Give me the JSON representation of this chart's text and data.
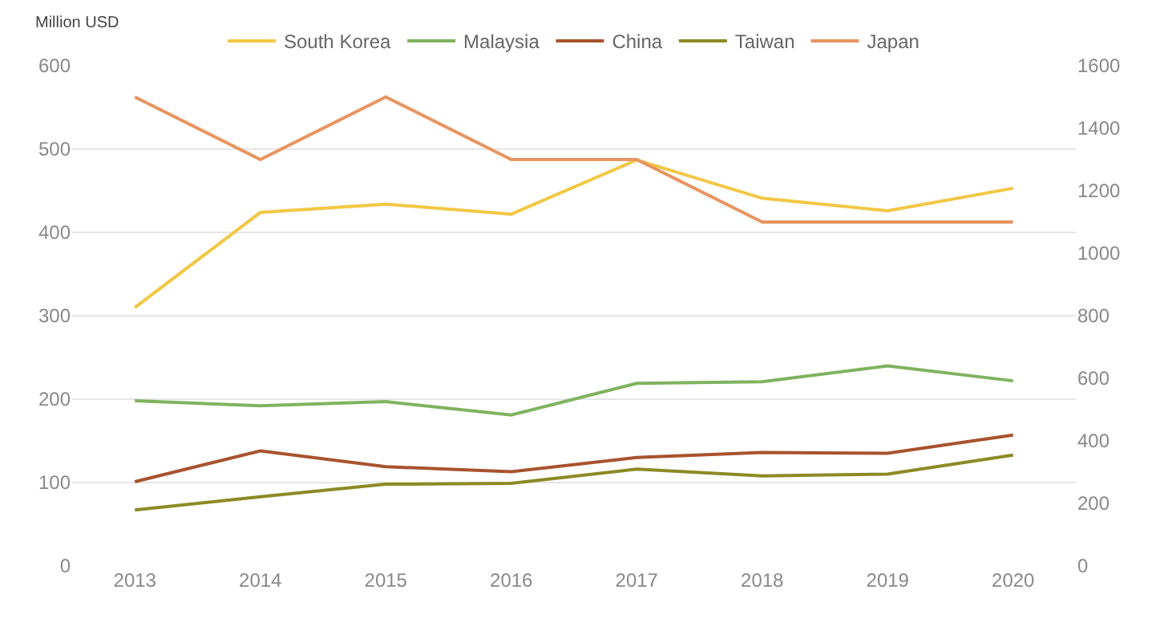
{
  "chart_data": {
    "type": "line",
    "ylabel": "Million USD",
    "categories": [
      "2013",
      "2014",
      "2015",
      "2016",
      "2017",
      "2018",
      "2019",
      "2020"
    ],
    "series": [
      {
        "name": "South Korea",
        "color": "#f2c744",
        "values": [
          310,
          424,
          434,
          422,
          487,
          441,
          426,
          453
        ]
      },
      {
        "name": "Malaysia",
        "color": "#7fb35f",
        "values": [
          198,
          192,
          197,
          181,
          219,
          221,
          240,
          222
        ]
      },
      {
        "name": "China",
        "color": "#a8532e",
        "values": [
          101,
          138,
          119,
          113,
          130,
          136,
          135,
          157
        ]
      },
      {
        "name": "Taiwan",
        "color": "#8c8a24",
        "values": [
          67,
          83,
          98,
          99,
          116,
          108,
          110,
          133
        ]
      },
      {
        "name": "Japan",
        "color": "#e89460",
        "axis": "y2",
        "values": [
          1500,
          1300,
          1500,
          1300,
          1300,
          1100,
          1100,
          1100
        ]
      }
    ],
    "ylim": [
      0,
      600
    ],
    "yticks": [
      0,
      100,
      200,
      300,
      400,
      500,
      600
    ],
    "y2lim": [
      0,
      1600
    ],
    "y2ticks": [
      0,
      200,
      400,
      600,
      800,
      1000,
      1200,
      1400,
      1600
    ],
    "grid": "y",
    "legend": "top",
    "marker": "none",
    "line_style": "solid"
  }
}
